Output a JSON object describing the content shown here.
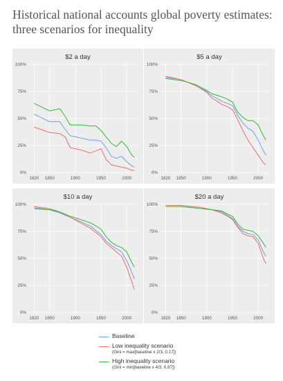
{
  "title": "Historical national accounts global poverty estimates: three scenarios for inequality",
  "colors": {
    "Baseline": "#6ea0ea",
    "Low inequality scenario": "#ee6c6c",
    "High inequality scenario": "#2fb82f"
  },
  "legend": [
    {
      "name": "Baseline",
      "note": ""
    },
    {
      "name": "Low inequality scenario",
      "note": "(Gini = max[baseline x 2/3,  0.17])"
    },
    {
      "name": "High inequality scenario",
      "note": "(Gini = min[baseline x 4/3,  0.97])"
    }
  ],
  "chart_data": [
    {
      "type": "line",
      "title": "$2 a day",
      "xlim": [
        1810,
        2020
      ],
      "ylim": [
        0,
        100
      ],
      "xticks": [
        "1820",
        "1850",
        "1900",
        "1950",
        "2000"
      ],
      "yticks": [
        "0%",
        "25%",
        "50%",
        "75%",
        "100%"
      ],
      "x": [
        1820,
        1850,
        1870,
        1880,
        1890,
        1910,
        1929,
        1940,
        1950,
        1960,
        1970,
        1980,
        1990,
        2000,
        2010,
        2015
      ],
      "series": [
        {
          "name": "Baseline",
          "values": [
            54,
            47,
            47,
            40,
            34,
            32,
            30,
            30,
            29,
            23,
            15,
            13,
            15,
            10,
            6,
            5
          ]
        },
        {
          "name": "Low inequality scenario",
          "values": [
            42,
            37,
            36,
            33,
            23,
            21,
            18,
            20,
            22,
            12,
            7,
            6,
            5,
            4,
            2,
            2
          ]
        },
        {
          "name": "High inequality scenario",
          "values": [
            64,
            57,
            59,
            52,
            44,
            44,
            43,
            43,
            39,
            33,
            27,
            24,
            29,
            24,
            16,
            14
          ]
        }
      ]
    },
    {
      "type": "line",
      "title": "$5 a day",
      "xlim": [
        1810,
        2020
      ],
      "ylim": [
        0,
        100
      ],
      "xticks": [
        "1820",
        "1850",
        "1900",
        "1950",
        "2000"
      ],
      "yticks": [
        "0%",
        "25%",
        "50%",
        "75%",
        "100%"
      ],
      "x": [
        1820,
        1850,
        1860,
        1880,
        1900,
        1910,
        1929,
        1940,
        1950,
        1960,
        1970,
        1980,
        1990,
        2000,
        2010,
        2015
      ],
      "series": [
        {
          "name": "Baseline",
          "values": [
            88,
            86,
            84,
            80,
            75,
            71,
            66,
            64,
            62,
            53,
            46,
            41,
            38,
            30,
            20,
            16
          ]
        },
        {
          "name": "Low inequality scenario",
          "values": [
            89,
            86,
            84,
            80,
            74,
            69,
            63,
            61,
            58,
            49,
            39,
            30,
            23,
            16,
            9,
            7
          ]
        },
        {
          "name": "High inequality scenario",
          "values": [
            87,
            85,
            84,
            81,
            76,
            73,
            70,
            68,
            65,
            56,
            51,
            48,
            48,
            44,
            34,
            30
          ]
        }
      ]
    },
    {
      "type": "line",
      "title": "$10 a day",
      "xlim": [
        1810,
        2020
      ],
      "ylim": [
        0,
        100
      ],
      "xticks": [
        "1820",
        "1850",
        "1900",
        "1950",
        "2000"
      ],
      "yticks": [
        "0%",
        "25%",
        "50%",
        "75%",
        "100%"
      ],
      "x": [
        1820,
        1850,
        1870,
        1890,
        1910,
        1929,
        1940,
        1950,
        1960,
        1970,
        1980,
        1990,
        2000,
        2010,
        2015
      ],
      "series": [
        {
          "name": "Baseline",
          "values": [
            97,
            95,
            92,
            88,
            84,
            80,
            76,
            72,
            66,
            62,
            59,
            56,
            48,
            37,
            31
          ]
        },
        {
          "name": "Low inequality scenario",
          "values": [
            98,
            96,
            93,
            88,
            83,
            78,
            74,
            70,
            64,
            60,
            56,
            52,
            42,
            28,
            21
          ]
        },
        {
          "name": "High inequality scenario",
          "values": [
            96,
            95,
            93,
            89,
            86,
            83,
            80,
            77,
            70,
            65,
            62,
            60,
            56,
            46,
            42
          ]
        }
      ]
    },
    {
      "type": "line",
      "title": "$20 a day",
      "xlim": [
        1810,
        2020
      ],
      "ylim": [
        0,
        100
      ],
      "xticks": [
        "1820",
        "1850",
        "1900",
        "1950",
        "2000"
      ],
      "yticks": [
        "0%",
        "25%",
        "50%",
        "75%",
        "100%"
      ],
      "x": [
        1820,
        1850,
        1870,
        1890,
        1910,
        1929,
        1940,
        1950,
        1960,
        1970,
        1980,
        1990,
        2000,
        2010,
        2015
      ],
      "series": [
        {
          "name": "Baseline",
          "values": [
            99,
            99,
            98,
            97,
            95,
            93,
            90,
            87,
            80,
            75,
            73,
            72,
            67,
            56,
            52
          ]
        },
        {
          "name": "Low inequality scenario",
          "values": [
            99,
            99,
            98,
            97,
            95,
            92,
            89,
            86,
            79,
            73,
            71,
            70,
            64,
            50,
            45
          ]
        },
        {
          "name": "High inequality scenario",
          "values": [
            98,
            98,
            97,
            96,
            95,
            94,
            91,
            89,
            82,
            77,
            76,
            75,
            71,
            64,
            60
          ]
        }
      ]
    }
  ]
}
